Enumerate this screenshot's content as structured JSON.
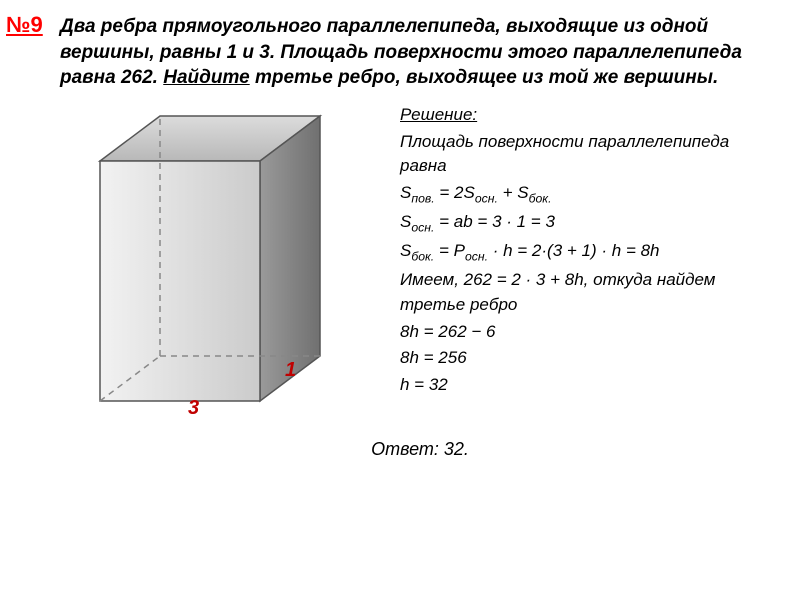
{
  "problem_number": "№9",
  "problem_html": "Два ребра прямоугольного параллелепипеда, выходящие из одной вершины, равны 1 и 3. Площадь поверхности этого параллелепипеда равна 262. <span class=\"underline\">Найдите</span> третье ребро, выходящее из той же вершины.",
  "solution": {
    "title": "Решение:",
    "lines": [
      "Площадь поверхности параллелепипеда равна",
      "S<span class=\"sub\">пов.</span> = 2S<span class=\"sub\">осн.</span> + S<span class=\"sub\">бок.</span>",
      "S<span class=\"sub\">осн.</span> = ab = 3 · 1 = 3",
      "S<span class=\"sub\">бок.</span> = P<span class=\"sub\">осн.</span> · h = 2·(3 + 1) · h = 8h",
      "Имеем, 262 = 2 · 3 + 8h, откуда найдем третье ребро",
      "8h = 262 − 6",
      "8h = 256",
      "h = 32"
    ]
  },
  "answer": "Ответ: 32.",
  "figure": {
    "label_a": "3",
    "label_b": "1",
    "colors": {
      "front_light": "#e8e8e8",
      "front_dark": "#cfcfcf",
      "side": "#888888",
      "top": "#c9c9c9",
      "stroke": "#555555",
      "dash": "#888888"
    }
  }
}
